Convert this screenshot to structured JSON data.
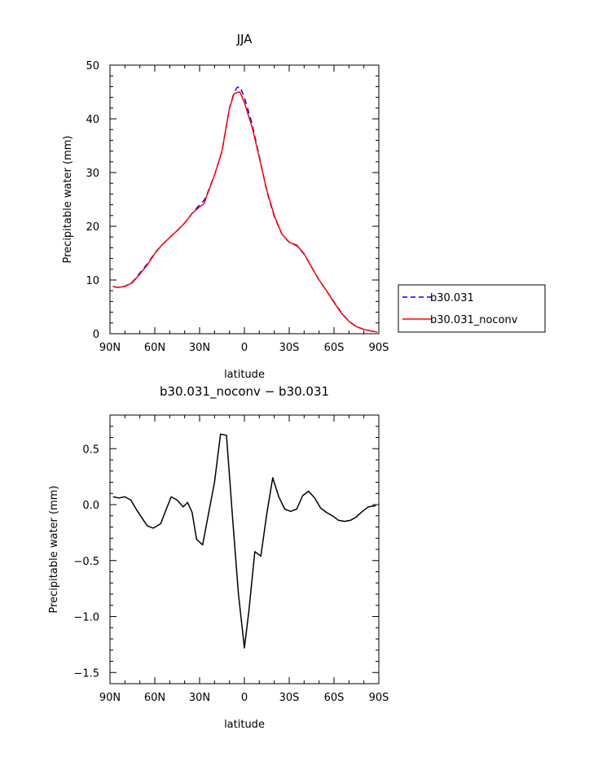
{
  "chart_data": [
    {
      "type": "line",
      "title": "JJA",
      "xlabel": "latitude",
      "ylabel": "Precipitable water (mm)",
      "xlim": [
        -90,
        90
      ],
      "ylim": [
        0,
        50
      ],
      "xticks": [
        -90,
        -60,
        -30,
        0,
        30,
        60,
        90
      ],
      "xtick_labels": [
        "90N",
        "60N",
        "30N",
        "0",
        "30S",
        "60S",
        "90S"
      ],
      "yticks": [
        0,
        10,
        20,
        30,
        40,
        50
      ],
      "ytick_labels": [
        "0",
        "10",
        "20",
        "30",
        "40",
        "50"
      ],
      "legend_position": "right",
      "series": [
        {
          "name": "b30.031",
          "color": "#0000ff",
          "style": "dashed",
          "x": [
            -88,
            -85,
            -80,
            -75,
            -70,
            -65,
            -60,
            -55,
            -50,
            -45,
            -40,
            -35,
            -30,
            -27,
            -25,
            -20,
            -15,
            -10,
            -7,
            -5,
            -3,
            0,
            5,
            10,
            15,
            20,
            25,
            30,
            35,
            40,
            45,
            50,
            55,
            60,
            65,
            70,
            75,
            80,
            85,
            89
          ],
          "y": [
            8.8,
            8.6,
            8.8,
            9.6,
            11.3,
            13.0,
            15.0,
            16.6,
            17.9,
            19.2,
            20.6,
            22.4,
            24.0,
            24.8,
            26.0,
            29.5,
            34.0,
            42.0,
            44.8,
            45.8,
            46.0,
            44.0,
            39.2,
            33.0,
            26.5,
            21.8,
            18.6,
            17.0,
            16.4,
            14.8,
            12.4,
            10.0,
            8.0,
            5.9,
            3.9,
            2.3,
            1.3,
            0.8,
            0.5,
            0.3
          ]
        },
        {
          "name": "b30.031_noconv",
          "color": "#ff0000",
          "style": "solid",
          "x": [
            -88,
            -85,
            -80,
            -75,
            -70,
            -65,
            -60,
            -55,
            -50,
            -45,
            -40,
            -35,
            -30,
            -27,
            -25,
            -20,
            -15,
            -10,
            -7,
            -5,
            -3,
            0,
            5,
            10,
            15,
            20,
            25,
            30,
            35,
            40,
            45,
            50,
            55,
            60,
            65,
            70,
            75,
            80,
            85,
            89
          ],
          "y": [
            8.8,
            8.6,
            8.8,
            9.5,
            11.1,
            12.8,
            14.9,
            16.6,
            17.9,
            19.2,
            20.6,
            22.4,
            23.6,
            24.2,
            25.8,
            29.5,
            34.0,
            42.0,
            44.6,
            44.9,
            45.0,
            43.0,
            38.6,
            32.8,
            26.7,
            22.0,
            18.6,
            17.0,
            16.5,
            14.9,
            12.4,
            10.0,
            8.0,
            5.8,
            3.8,
            2.3,
            1.3,
            0.8,
            0.5,
            0.3
          ]
        }
      ]
    },
    {
      "type": "line",
      "title": "b30.031_noconv − b30.031",
      "xlabel": "latitude",
      "ylabel": "Precipitable water (mm)",
      "xlim": [
        -90,
        90
      ],
      "ylim": [
        -1.6,
        0.8
      ],
      "xticks": [
        -90,
        -60,
        -30,
        0,
        30,
        60,
        90
      ],
      "xtick_labels": [
        "90N",
        "60N",
        "30N",
        "0",
        "30S",
        "60S",
        "90S"
      ],
      "yticks": [
        -1.5,
        -1.0,
        -0.5,
        0.0,
        0.5
      ],
      "ytick_labels": [
        "−1.5",
        "−1.0",
        "−0.5",
        "0.0",
        "0.5"
      ],
      "series": [
        {
          "color": "#000000",
          "style": "solid",
          "x": [
            -88,
            -84,
            -80,
            -76,
            -72,
            -68,
            -65,
            -61,
            -56,
            -52,
            -49,
            -45,
            -41,
            -38,
            -35,
            -32,
            -28,
            -24,
            -20,
            -16,
            -12,
            -8,
            -4,
            0,
            3,
            7,
            11,
            15,
            19,
            23,
            27,
            31,
            35,
            39,
            43,
            47,
            51,
            55,
            59,
            63,
            67,
            71,
            75,
            79,
            83,
            88
          ],
          "y": [
            0.07,
            0.06,
            0.07,
            0.04,
            -0.05,
            -0.13,
            -0.19,
            -0.21,
            -0.17,
            -0.03,
            0.07,
            0.04,
            -0.02,
            0.02,
            -0.07,
            -0.31,
            -0.36,
            -0.08,
            0.2,
            0.63,
            0.62,
            -0.1,
            -0.8,
            -1.28,
            -0.95,
            -0.42,
            -0.46,
            -0.08,
            0.24,
            0.07,
            -0.04,
            -0.06,
            -0.04,
            0.08,
            0.12,
            0.06,
            -0.03,
            -0.07,
            -0.1,
            -0.14,
            -0.15,
            -0.14,
            -0.11,
            -0.06,
            -0.02,
            -0.01
          ]
        }
      ]
    }
  ]
}
